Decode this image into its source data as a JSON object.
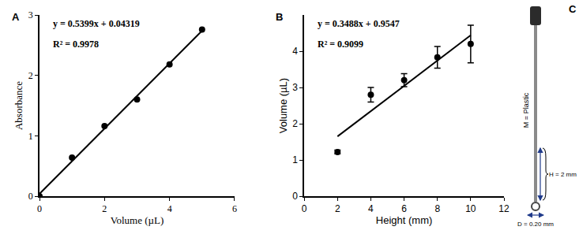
{
  "chart_data": [
    {
      "type": "scatter",
      "title": "A",
      "xlabel": "Volume (µL)",
      "ylabel": "Absorbance",
      "xlim": [
        0,
        6
      ],
      "xticks": [
        0,
        2,
        4,
        6
      ],
      "ylim": [
        0,
        3
      ],
      "yticks": [
        0,
        1,
        2,
        3
      ],
      "annotations": [
        "y = 0.5399x + 0.04319",
        "R² = 0.9978"
      ],
      "series": [
        {
          "type": "scatter",
          "marker": "circle",
          "color": "#000000",
          "x": [
            0,
            1,
            2,
            3,
            4,
            5
          ],
          "values": [
            0,
            0.64,
            1.16,
            1.6,
            2.18,
            2.76
          ]
        },
        {
          "type": "line",
          "line_style": "solid",
          "color": "#000000",
          "x": [
            0,
            5
          ],
          "values": [
            0.04,
            2.74
          ]
        }
      ]
    },
    {
      "type": "scatter",
      "title": "B",
      "xlabel": "Height (mm)",
      "ylabel": "Volume (µL)",
      "xlim": [
        0,
        12
      ],
      "xticks": [
        0,
        2,
        4,
        6,
        8,
        10,
        12
      ],
      "ylim": [
        0,
        5
      ],
      "yticks": [
        0,
        1,
        2,
        3,
        4
      ],
      "annotations": [
        "y = 0.3488x + 0.9547",
        "R² = 0.9099"
      ],
      "series": [
        {
          "type": "scatter",
          "marker": "circle",
          "color": "#000000",
          "x": [
            2,
            4,
            6,
            8,
            10
          ],
          "values": [
            1.22,
            2.8,
            3.2,
            3.83,
            4.2
          ],
          "errors": [
            0.05,
            0.2,
            0.18,
            0.3,
            0.52
          ]
        },
        {
          "type": "line",
          "line_style": "solid",
          "color": "#000000",
          "x": [
            2,
            10
          ],
          "values": [
            1.65,
            4.44
          ]
        }
      ]
    }
  ],
  "diagram": {
    "title": "C",
    "material": "M = Plastic",
    "height": "H = 2 mm",
    "diameter": "D = 0.20 mm"
  }
}
